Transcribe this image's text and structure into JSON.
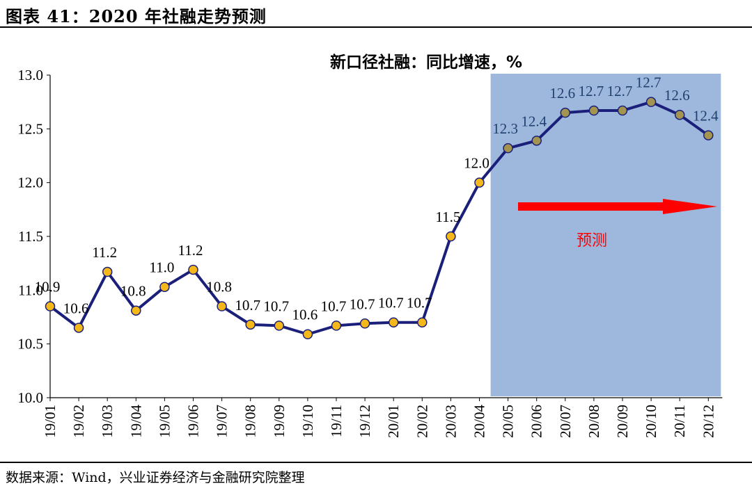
{
  "header": {
    "figure_title": "图表 41：2020 年社融走势预测"
  },
  "footer": {
    "source": "数据来源：Wind，兴业证券经济与金融研究院整理"
  },
  "chart_data": {
    "type": "line",
    "title": "新口径社融：同比增速，%",
    "xlabel": "",
    "ylabel": "",
    "ylim": [
      10.0,
      13.0
    ],
    "yticks": [
      "10.0",
      "10.5",
      "11.0",
      "11.5",
      "12.0",
      "12.5",
      "13.0"
    ],
    "categories": [
      "19/01",
      "19/02",
      "19/03",
      "19/04",
      "19/05",
      "19/06",
      "19/07",
      "19/08",
      "19/09",
      "19/10",
      "19/11",
      "19/12",
      "20/01",
      "20/02",
      "20/03",
      "20/04",
      "20/05",
      "20/06",
      "20/07",
      "20/08",
      "20/09",
      "20/10",
      "20/11",
      "20/12"
    ],
    "values": [
      10.85,
      10.65,
      11.17,
      10.81,
      11.03,
      11.19,
      10.85,
      10.68,
      10.67,
      10.59,
      10.67,
      10.69,
      10.7,
      10.7,
      11.5,
      12.0,
      12.32,
      12.39,
      12.65,
      12.67,
      12.67,
      12.75,
      12.63,
      12.44
    ],
    "data_labels": [
      "10.9",
      "10.6",
      "11.2",
      "10.8",
      "11.0",
      "11.2",
      "10.8",
      "10.7",
      "10.7",
      "10.6",
      "10.7",
      "10.7",
      "10.7",
      "10.7",
      "11.5",
      "12.0",
      "12.3",
      "12.4",
      "12.6",
      "12.7",
      "12.7",
      "12.7",
      "12.6",
      "12.4"
    ],
    "forecast_region": {
      "from": "20/05",
      "to": "20/12",
      "label": "预测"
    },
    "colors": {
      "line": "#1a1f7a",
      "marker_fill": "#f5b81a",
      "marker_fill_forecast": "#a3954f",
      "forecast_fill": "#9eb8dd",
      "arrow": "#ff0000"
    },
    "grid": false,
    "legend": "none"
  }
}
